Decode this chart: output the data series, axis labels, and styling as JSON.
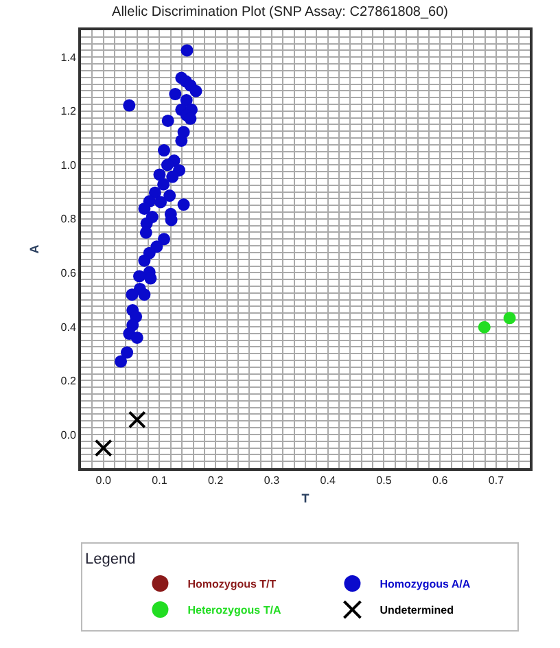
{
  "chart_data": {
    "type": "scatter",
    "title": "Allelic Discrimination Plot (SNP Assay: C27861808_60)",
    "xlabel": "T",
    "ylabel": "A",
    "legend_title": "Legend",
    "legend": "bottom",
    "grid": true,
    "marker": "circle",
    "xlim": [
      -0.04,
      0.76
    ],
    "ylim": [
      -0.125,
      1.5
    ],
    "xticks": [
      {
        "value": 0,
        "label": "0.0"
      },
      0.1,
      0.2,
      0.3,
      0.4,
      0.5,
      0.6,
      0.7
    ],
    "yticks": [
      {
        "value": 0,
        "label": "0.0"
      },
      0.2,
      0.4,
      0.6,
      0.8,
      {
        "value": 1,
        "label": "1.0"
      },
      1.2,
      1.4
    ],
    "series": [
      {
        "name": "Homozygous T/T",
        "color": "#8b1a1a"
      },
      {
        "name": "Homozygous A/A",
        "color": "#0a0acc",
        "x": [
          0.149,
          0.046,
          0.139,
          0.147,
          0.155,
          0.165,
          0.128,
          0.148,
          0.139,
          0.157,
          0.148,
          0.155,
          0.115,
          0.143,
          0.139,
          0.108,
          0.126,
          0.114,
          0.135,
          0.1,
          0.123,
          0.107,
          0.092,
          0.118,
          0.082,
          0.102,
          0.143,
          0.073,
          0.12,
          0.087,
          0.121,
          0.077,
          0.076,
          0.108,
          0.095,
          0.082,
          0.073,
          0.082,
          0.064,
          0.084,
          0.065,
          0.051,
          0.073,
          0.052,
          0.058,
          0.052,
          0.046,
          0.06,
          0.042,
          0.031
        ],
        "values": [
          1.425,
          1.221,
          1.323,
          1.31,
          1.295,
          1.274,
          1.263,
          1.24,
          1.205,
          1.205,
          1.185,
          1.172,
          1.164,
          1.122,
          1.09,
          1.054,
          1.016,
          1.0,
          0.98,
          0.964,
          0.956,
          0.928,
          0.897,
          0.886,
          0.865,
          0.862,
          0.853,
          0.838,
          0.818,
          0.807,
          0.796,
          0.783,
          0.749,
          0.725,
          0.697,
          0.673,
          0.645,
          0.602,
          0.587,
          0.579,
          0.54,
          0.519,
          0.519,
          0.461,
          0.437,
          0.406,
          0.374,
          0.359,
          0.304,
          0.271
        ]
      },
      {
        "name": "Heterozygous T/A",
        "color": "#22dd22",
        "x": [
          0.679,
          0.724
        ],
        "values": [
          0.398,
          0.432
        ]
      },
      {
        "name": "Undetermined",
        "color": "#000000",
        "marker": "cross",
        "x": [
          0.0,
          0.06
        ],
        "values": [
          -0.05,
          0.055
        ]
      }
    ]
  }
}
